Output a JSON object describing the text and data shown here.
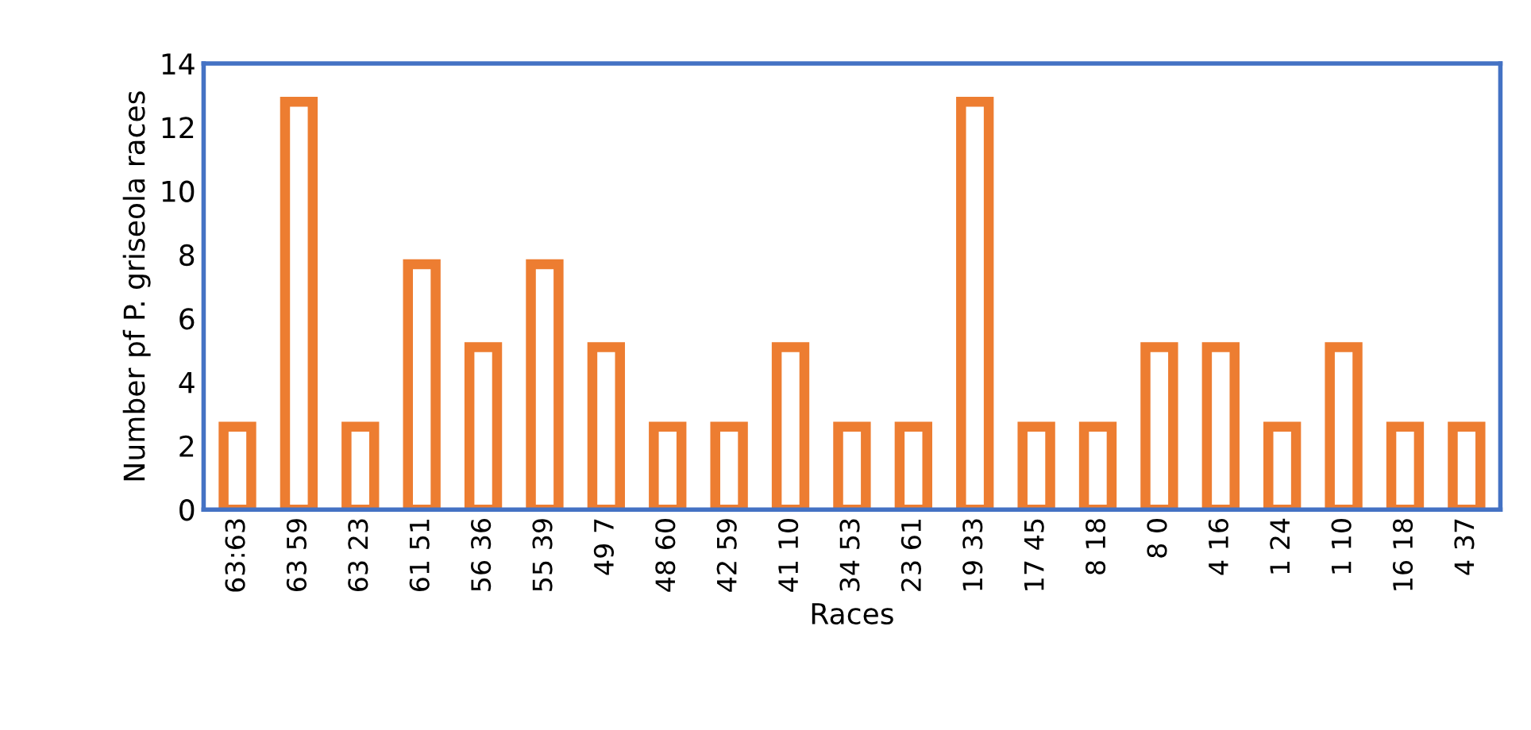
{
  "chart_data": {
    "type": "bar",
    "xlabel": "Races",
    "ylabel": "Number pf P. griseola races",
    "categories": [
      "63:63",
      "63 59",
      "63 23",
      "61 51",
      "56 36",
      "55 39",
      "49 7",
      "48 60",
      "42 59",
      "41 10",
      "34 53",
      "23 61",
      "19 33",
      "17 45",
      "8 18",
      "8 0",
      "4 16",
      "1 24",
      "1 10",
      "16 18",
      "4 37"
    ],
    "series": [
      {
        "color": "#ed7d31",
        "values": [
          2.6,
          12.8,
          2.6,
          7.7,
          5.1,
          7.7,
          5.1,
          2.6,
          2.6,
          5.1,
          2.6,
          2.6,
          12.8,
          2.6,
          2.6,
          5.1,
          5.1,
          2.6,
          5.1,
          2.6,
          2.6
        ]
      }
    ],
    "ylim": [
      0,
      14
    ],
    "yticks": [
      0,
      2,
      4,
      6,
      8,
      10,
      12,
      14
    ],
    "grid": false,
    "legend": false
  }
}
